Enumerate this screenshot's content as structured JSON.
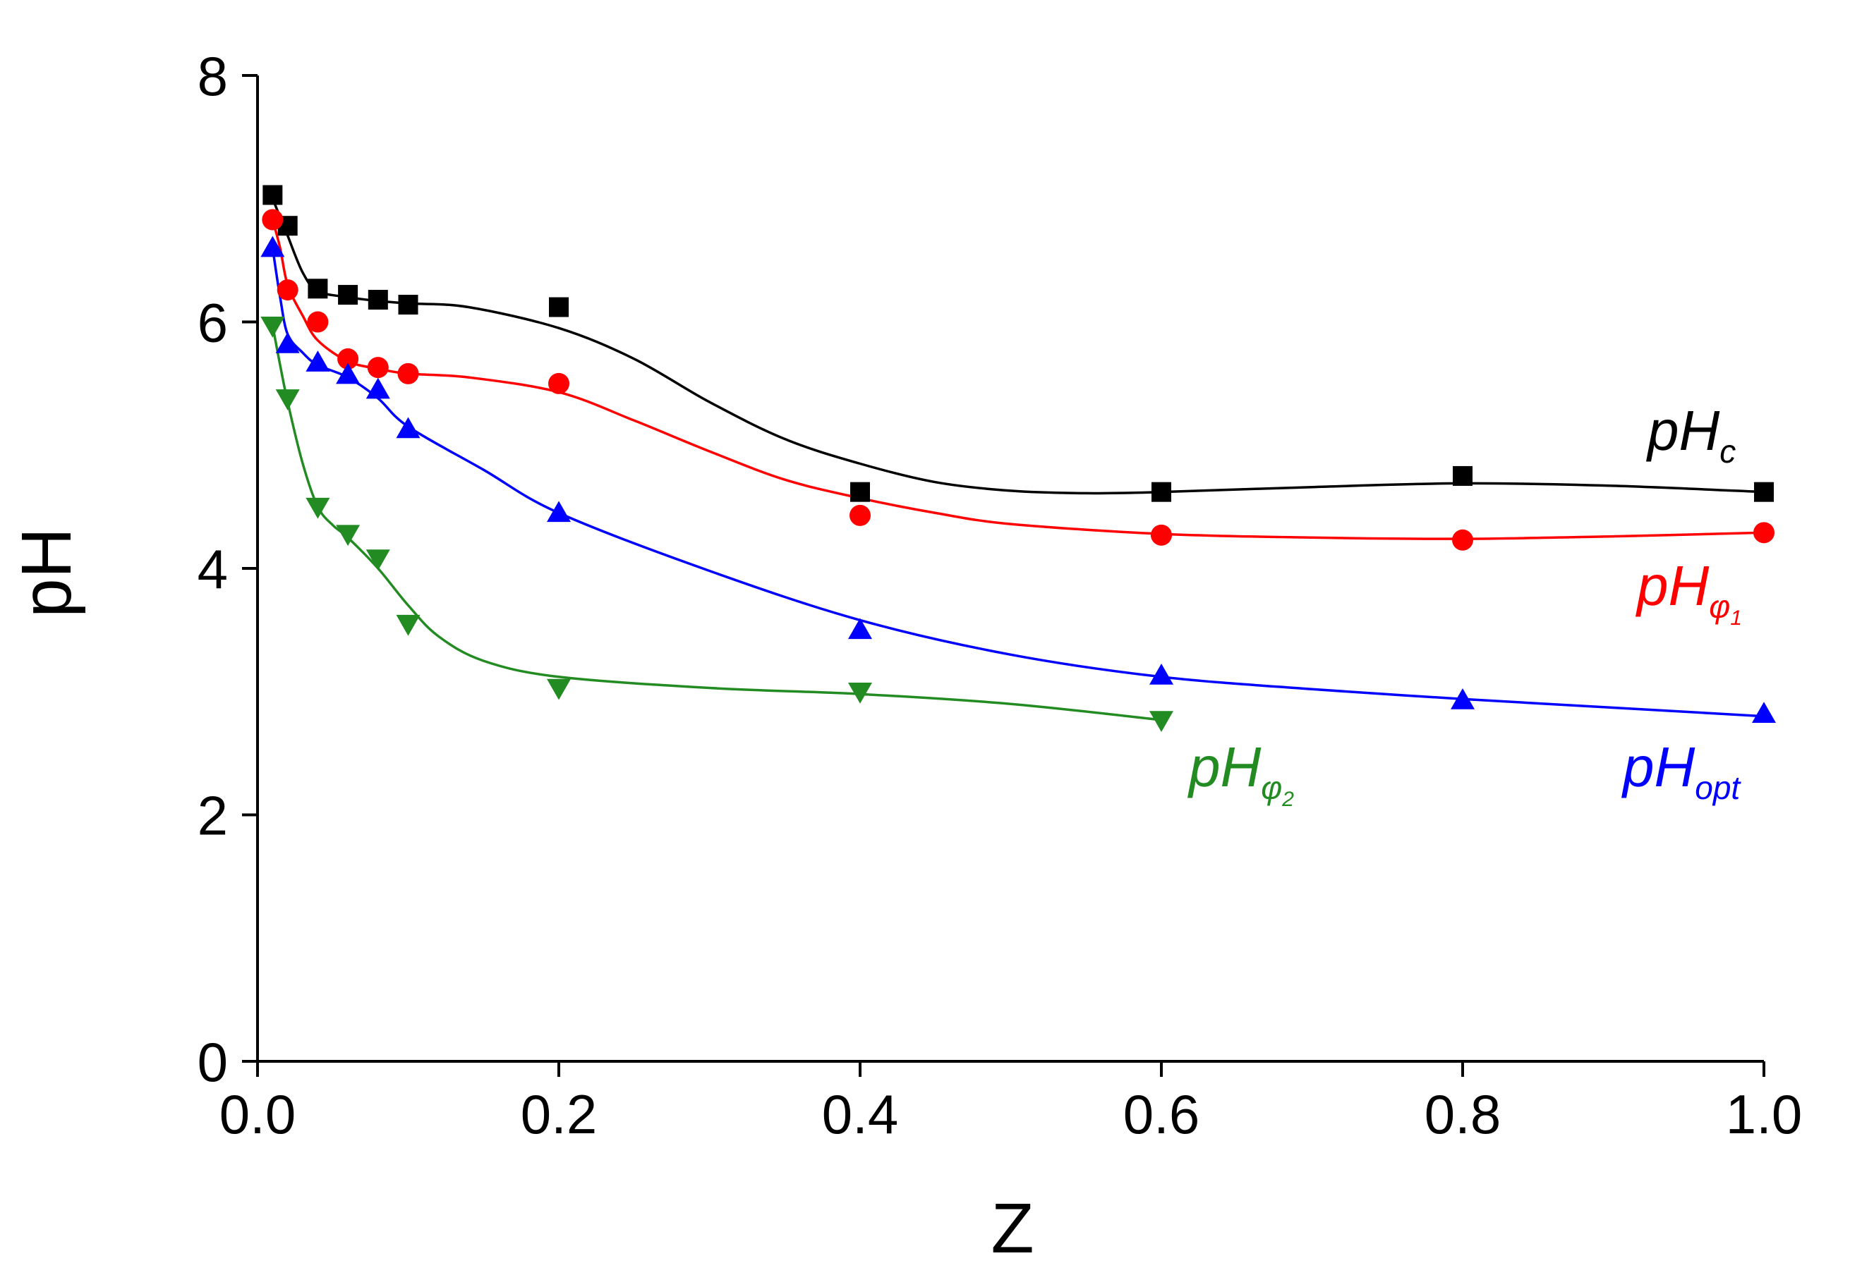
{
  "chart_data": {
    "type": "line",
    "title": "",
    "xlabel": "Z",
    "ylabel": "pH",
    "xlim": [
      0.0,
      1.0
    ],
    "ylim": [
      0,
      8
    ],
    "xticks": [
      "0.0",
      "0.2",
      "0.4",
      "0.6",
      "0.8",
      "1.0"
    ],
    "yticks": [
      "0",
      "2",
      "4",
      "6",
      "8"
    ],
    "grid": false,
    "series": [
      {
        "name": "pHc",
        "label_main": "pH",
        "label_sub": "c",
        "label_subsub": "",
        "color": "#000000",
        "marker": "square",
        "x": [
          0.01,
          0.02,
          0.04,
          0.06,
          0.08,
          0.1,
          0.2,
          0.4,
          0.6,
          0.8,
          1.0
        ],
        "y": [
          7.03,
          6.78,
          6.27,
          6.22,
          6.18,
          6.14,
          6.12,
          4.62,
          4.62,
          4.75,
          4.62
        ],
        "curve_x": [
          0.01,
          0.015,
          0.02,
          0.03,
          0.04,
          0.06,
          0.08,
          0.1,
          0.14,
          0.2,
          0.25,
          0.3,
          0.35,
          0.4,
          0.45,
          0.5,
          0.55,
          0.6,
          0.7,
          0.8,
          0.9,
          1.0
        ],
        "curve_y": [
          7.0,
          6.85,
          6.7,
          6.4,
          6.25,
          6.2,
          6.17,
          6.15,
          6.12,
          5.95,
          5.7,
          5.35,
          5.05,
          4.85,
          4.7,
          4.63,
          4.61,
          4.62,
          4.66,
          4.69,
          4.67,
          4.62
        ]
      },
      {
        "name": "pHφ1",
        "label_main": "pH",
        "label_sub": "φ",
        "label_subsub": "1",
        "color": "#ff0000",
        "marker": "circle",
        "x": [
          0.01,
          0.02,
          0.04,
          0.06,
          0.08,
          0.1,
          0.2,
          0.4,
          0.6,
          0.8,
          1.0
        ],
        "y": [
          6.83,
          6.26,
          6.0,
          5.7,
          5.63,
          5.58,
          5.5,
          4.43,
          4.27,
          4.23,
          4.29
        ],
        "curve_x": [
          0.01,
          0.015,
          0.02,
          0.03,
          0.04,
          0.06,
          0.08,
          0.1,
          0.14,
          0.2,
          0.25,
          0.3,
          0.35,
          0.4,
          0.45,
          0.5,
          0.6,
          0.7,
          0.8,
          0.9,
          1.0
        ],
        "curve_y": [
          6.83,
          6.6,
          6.3,
          6.05,
          5.85,
          5.68,
          5.62,
          5.58,
          5.55,
          5.43,
          5.2,
          4.95,
          4.72,
          4.57,
          4.45,
          4.36,
          4.28,
          4.25,
          4.24,
          4.26,
          4.29
        ]
      },
      {
        "name": "pHopt",
        "label_main": "pH",
        "label_sub": "opt",
        "label_subsub": "",
        "color": "#0000ff",
        "marker": "triangle-up",
        "x": [
          0.01,
          0.02,
          0.04,
          0.06,
          0.08,
          0.1,
          0.2,
          0.4,
          0.6,
          0.8,
          1.0
        ],
        "y": [
          6.6,
          5.82,
          5.67,
          5.57,
          5.45,
          5.13,
          4.45,
          3.5,
          3.13,
          2.93,
          2.82
        ],
        "curve_x": [
          0.01,
          0.015,
          0.02,
          0.03,
          0.04,
          0.06,
          0.08,
          0.1,
          0.15,
          0.2,
          0.3,
          0.4,
          0.5,
          0.6,
          0.7,
          0.8,
          0.9,
          1.0
        ],
        "curve_y": [
          6.6,
          6.2,
          5.9,
          5.75,
          5.65,
          5.55,
          5.38,
          5.15,
          4.8,
          4.45,
          3.98,
          3.58,
          3.3,
          3.12,
          3.02,
          2.94,
          2.87,
          2.8
        ]
      },
      {
        "name": "pHφ2",
        "label_main": "pH",
        "label_sub": "φ",
        "label_subsub": "2",
        "color": "#228b22",
        "marker": "triangle-down",
        "x": [
          0.01,
          0.02,
          0.04,
          0.06,
          0.08,
          0.1,
          0.2,
          0.4,
          0.6
        ],
        "y": [
          5.97,
          5.38,
          4.5,
          4.28,
          4.08,
          3.55,
          3.03,
          3.0,
          2.77
        ],
        "curve_x": [
          0.01,
          0.015,
          0.02,
          0.03,
          0.04,
          0.05,
          0.06,
          0.08,
          0.1,
          0.12,
          0.15,
          0.2,
          0.3,
          0.4,
          0.5,
          0.6
        ],
        "curve_y": [
          5.97,
          5.65,
          5.35,
          4.85,
          4.5,
          4.35,
          4.25,
          4.0,
          3.7,
          3.45,
          3.25,
          3.12,
          3.03,
          2.98,
          2.9,
          2.77
        ]
      }
    ]
  }
}
